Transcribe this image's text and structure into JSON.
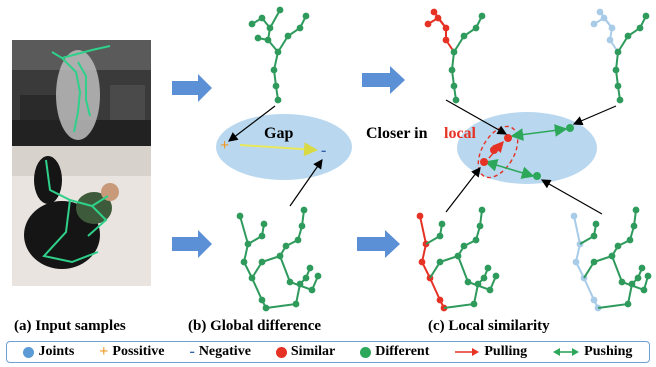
{
  "labels": {
    "gap": "Gap",
    "closer_in": "Closer in",
    "local": "local",
    "caption_a": "(a) Input samples",
    "caption_b": "(b) Global difference",
    "caption_c": "(c) Local similarity"
  },
  "legend": [
    {
      "id": "joints",
      "symbol": "dot",
      "color": "#5b9bd5",
      "label": "Joints"
    },
    {
      "id": "positive",
      "symbol": "+",
      "color": "#ed9a26",
      "label": "Possitive"
    },
    {
      "id": "negative",
      "symbol": "-",
      "color": "#2e5fa8",
      "label": "Negative"
    },
    {
      "id": "similar",
      "symbol": "dot",
      "color": "#e53225",
      "label": "Similar"
    },
    {
      "id": "different",
      "symbol": "dot",
      "color": "#2da85a",
      "label": "Different"
    },
    {
      "id": "pulling",
      "symbol": "arrow-right",
      "color": "#e53225",
      "label": "Pulling"
    },
    {
      "id": "pushing",
      "symbol": "arrow-both",
      "color": "#2da85a",
      "label": "Pushing"
    }
  ],
  "colors": {
    "skeleton": "#2e9a5c",
    "similar": "#e53225",
    "faded": "#a8cbe8",
    "ellipse": "#b9d8ef",
    "arrow_blue": "#5b8fd6",
    "gap_line": "#e8e85a",
    "legend_border": "#6f9fd3"
  }
}
